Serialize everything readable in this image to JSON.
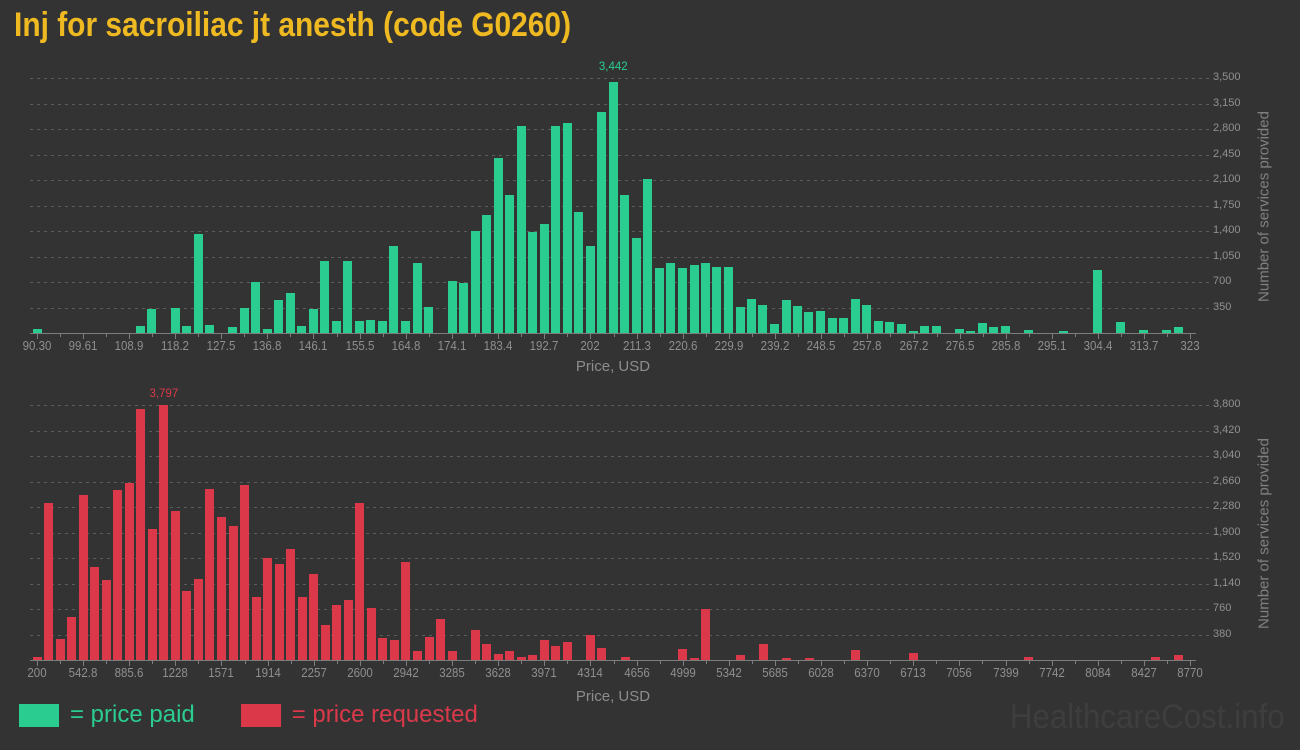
{
  "title": "Inj for sacroiliac jt anesth (code G0260)",
  "watermark": "HealthcareCost.info",
  "colors": {
    "background": "#333333",
    "title": "#efba21",
    "price_paid": "#2bcc90",
    "price_requested": "#db394a",
    "axis_text": "#8f8f8f",
    "watermark_text": "#3e3e3e"
  },
  "legend": [
    {
      "label": "= price paid",
      "color": "#2bcc90"
    },
    {
      "label": "= price requested",
      "color": "#db394a"
    }
  ],
  "chart_data": [
    {
      "type": "bar",
      "name": "price paid",
      "color": "#2bcc90",
      "xlabel": "Price, USD",
      "ylabel": "Number of services provided",
      "x_min": 90.3,
      "x_max": 323,
      "y_max": 3500,
      "grid": true,
      "peak_label": "3,442",
      "x_ticks": [
        "90.30",
        "99.61",
        "108.9",
        "118.2",
        "127.5",
        "136.8",
        "146.1",
        "155.5",
        "164.8",
        "174.1",
        "183.4",
        "192.7",
        "202",
        "211.3",
        "220.6",
        "229.9",
        "239.2",
        "248.5",
        "257.8",
        "267.2",
        "276.5",
        "285.8",
        "295.1",
        "304.4",
        "313.7",
        "323"
      ],
      "y_tick_labels": [
        "350",
        "700",
        "1,050",
        "1,400",
        "1,750",
        "2,100",
        "2,450",
        "2,800",
        "3,150",
        "3,500"
      ],
      "bars": [
        {
          "x": 90.3,
          "y": 50
        },
        {
          "x": 111.2,
          "y": 90
        },
        {
          "x": 113.5,
          "y": 330
        },
        {
          "x": 118.2,
          "y": 350
        },
        {
          "x": 120.5,
          "y": 90
        },
        {
          "x": 122.8,
          "y": 1360
        },
        {
          "x": 125.1,
          "y": 110
        },
        {
          "x": 129.8,
          "y": 80
        },
        {
          "x": 132.1,
          "y": 350
        },
        {
          "x": 134.4,
          "y": 700
        },
        {
          "x": 136.8,
          "y": 50
        },
        {
          "x": 139.1,
          "y": 450
        },
        {
          "x": 141.4,
          "y": 550
        },
        {
          "x": 143.7,
          "y": 100
        },
        {
          "x": 146.1,
          "y": 330
        },
        {
          "x": 148.4,
          "y": 990
        },
        {
          "x": 150.7,
          "y": 160
        },
        {
          "x": 153.0,
          "y": 990
        },
        {
          "x": 155.4,
          "y": 165
        },
        {
          "x": 157.7,
          "y": 180
        },
        {
          "x": 160.0,
          "y": 160
        },
        {
          "x": 162.3,
          "y": 1190
        },
        {
          "x": 164.7,
          "y": 160
        },
        {
          "x": 167.0,
          "y": 955
        },
        {
          "x": 169.3,
          "y": 357
        },
        {
          "x": 174.1,
          "y": 710
        },
        {
          "x": 176.4,
          "y": 690
        },
        {
          "x": 178.7,
          "y": 1400
        },
        {
          "x": 181.0,
          "y": 1615
        },
        {
          "x": 183.4,
          "y": 2400
        },
        {
          "x": 185.7,
          "y": 1890
        },
        {
          "x": 188.0,
          "y": 2840
        },
        {
          "x": 190.3,
          "y": 1385
        },
        {
          "x": 192.7,
          "y": 1500
        },
        {
          "x": 195.0,
          "y": 2840
        },
        {
          "x": 197.3,
          "y": 2880
        },
        {
          "x": 199.6,
          "y": 1660
        },
        {
          "x": 202.0,
          "y": 1200
        },
        {
          "x": 204.3,
          "y": 3040
        },
        {
          "x": 206.6,
          "y": 3442
        },
        {
          "x": 208.9,
          "y": 1890
        },
        {
          "x": 211.3,
          "y": 1310
        },
        {
          "x": 213.6,
          "y": 2110
        },
        {
          "x": 215.9,
          "y": 886
        },
        {
          "x": 218.2,
          "y": 956
        },
        {
          "x": 220.6,
          "y": 886
        },
        {
          "x": 222.9,
          "y": 928
        },
        {
          "x": 225.2,
          "y": 965
        },
        {
          "x": 227.5,
          "y": 905
        },
        {
          "x": 229.9,
          "y": 905
        },
        {
          "x": 232.2,
          "y": 362
        },
        {
          "x": 234.5,
          "y": 464
        },
        {
          "x": 236.8,
          "y": 380
        },
        {
          "x": 239.2,
          "y": 121
        },
        {
          "x": 241.5,
          "y": 455
        },
        {
          "x": 243.8,
          "y": 371
        },
        {
          "x": 246.1,
          "y": 283
        },
        {
          "x": 248.5,
          "y": 306
        },
        {
          "x": 250.8,
          "y": 200
        },
        {
          "x": 253.1,
          "y": 200
        },
        {
          "x": 255.4,
          "y": 464
        },
        {
          "x": 257.8,
          "y": 385
        },
        {
          "x": 260.1,
          "y": 162
        },
        {
          "x": 262.4,
          "y": 148
        },
        {
          "x": 264.7,
          "y": 125
        },
        {
          "x": 267.2,
          "y": 20
        },
        {
          "x": 269.5,
          "y": 102
        },
        {
          "x": 271.8,
          "y": 102
        },
        {
          "x": 276.5,
          "y": 56
        },
        {
          "x": 278.8,
          "y": 23
        },
        {
          "x": 281.1,
          "y": 139
        },
        {
          "x": 283.4,
          "y": 84
        },
        {
          "x": 285.8,
          "y": 102
        },
        {
          "x": 290.4,
          "y": 37
        },
        {
          "x": 297.4,
          "y": 28
        },
        {
          "x": 304.4,
          "y": 858
        },
        {
          "x": 309.0,
          "y": 148
        },
        {
          "x": 313.7,
          "y": 37
        },
        {
          "x": 318.3,
          "y": 46
        },
        {
          "x": 320.6,
          "y": 84
        }
      ]
    },
    {
      "type": "bar",
      "name": "price requested",
      "color": "#db394a",
      "xlabel": "Price, USD",
      "ylabel": "Number of services provided",
      "x_min": 200,
      "x_max": 8770,
      "y_max": 3800,
      "grid": true,
      "peak_label": "3,797",
      "x_ticks": [
        "200",
        "542.8",
        "885.6",
        "1228",
        "1571",
        "1914",
        "2257",
        "2600",
        "2942",
        "3285",
        "3628",
        "3971",
        "4314",
        "4656",
        "4999",
        "5342",
        "5685",
        "6028",
        "6370",
        "6713",
        "7056",
        "7399",
        "7742",
        "8084",
        "8427",
        "8770"
      ],
      "y_tick_labels": [
        "380",
        "760",
        "1,140",
        "1,520",
        "1,900",
        "2,280",
        "2,660",
        "3,040",
        "3,420",
        "3,800"
      ],
      "bars": [
        {
          "x": 200,
          "y": 50
        },
        {
          "x": 285.7,
          "y": 2340
        },
        {
          "x": 371.4,
          "y": 312
        },
        {
          "x": 457.1,
          "y": 645
        },
        {
          "x": 542.8,
          "y": 2460
        },
        {
          "x": 628.5,
          "y": 1380
        },
        {
          "x": 714.2,
          "y": 1195
        },
        {
          "x": 799.9,
          "y": 2535
        },
        {
          "x": 885.6,
          "y": 2645
        },
        {
          "x": 971.3,
          "y": 3745
        },
        {
          "x": 1057.0,
          "y": 1945
        },
        {
          "x": 1142.7,
          "y": 3797
        },
        {
          "x": 1228.4,
          "y": 2215
        },
        {
          "x": 1314.1,
          "y": 1035
        },
        {
          "x": 1399.8,
          "y": 1210
        },
        {
          "x": 1485.5,
          "y": 2555
        },
        {
          "x": 1571.2,
          "y": 2130
        },
        {
          "x": 1656.9,
          "y": 2000
        },
        {
          "x": 1742.6,
          "y": 2605
        },
        {
          "x": 1828.3,
          "y": 945
        },
        {
          "x": 1914.0,
          "y": 1520
        },
        {
          "x": 1999.7,
          "y": 1425
        },
        {
          "x": 2085.4,
          "y": 1660
        },
        {
          "x": 2171.1,
          "y": 945
        },
        {
          "x": 2256.8,
          "y": 1280
        },
        {
          "x": 2342.5,
          "y": 515
        },
        {
          "x": 2428.2,
          "y": 815
        },
        {
          "x": 2513.9,
          "y": 890
        },
        {
          "x": 2599.6,
          "y": 2340
        },
        {
          "x": 2685.3,
          "y": 780
        },
        {
          "x": 2771.0,
          "y": 330
        },
        {
          "x": 2856.7,
          "y": 300
        },
        {
          "x": 2942.4,
          "y": 1460
        },
        {
          "x": 3028.1,
          "y": 140
        },
        {
          "x": 3113.8,
          "y": 350
        },
        {
          "x": 3199.5,
          "y": 614
        },
        {
          "x": 3285.2,
          "y": 141
        },
        {
          "x": 3456.6,
          "y": 443
        },
        {
          "x": 3542.3,
          "y": 236
        },
        {
          "x": 3628.0,
          "y": 85
        },
        {
          "x": 3713.7,
          "y": 141
        },
        {
          "x": 3799.4,
          "y": 50
        },
        {
          "x": 3885.1,
          "y": 75
        },
        {
          "x": 3970.8,
          "y": 292
        },
        {
          "x": 4056.5,
          "y": 211
        },
        {
          "x": 4142.2,
          "y": 262
        },
        {
          "x": 4313.6,
          "y": 367
        },
        {
          "x": 4399.3,
          "y": 176
        },
        {
          "x": 4570.7,
          "y": 50
        },
        {
          "x": 4999.2,
          "y": 161
        },
        {
          "x": 5084.9,
          "y": 25
        },
        {
          "x": 5170.6,
          "y": 755
        },
        {
          "x": 5427.7,
          "y": 75
        },
        {
          "x": 5599.1,
          "y": 236
        },
        {
          "x": 5770.5,
          "y": 25
        },
        {
          "x": 5941.9,
          "y": 35
        },
        {
          "x": 6284.7,
          "y": 152
        },
        {
          "x": 6713.2,
          "y": 111
        },
        {
          "x": 7570.0,
          "y": 50
        },
        {
          "x": 8512.4,
          "y": 50
        },
        {
          "x": 8683.8,
          "y": 70
        }
      ]
    }
  ]
}
